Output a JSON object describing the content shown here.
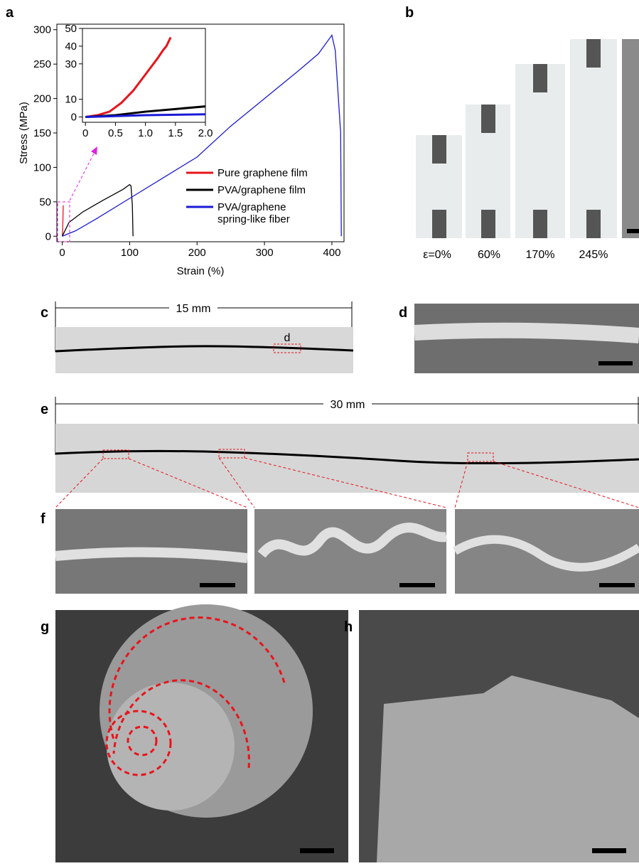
{
  "chart_data": [
    {
      "type": "line",
      "xlabel": "Strain (%)",
      "ylabel": "Stress (MPa)",
      "xlim": [
        -8,
        418
      ],
      "ylim": [
        -8,
        308
      ],
      "xticks": [
        0,
        100,
        200,
        300,
        400
      ],
      "yticks": [
        0,
        50,
        100,
        150,
        200,
        250,
        300
      ],
      "legend": "lower right",
      "series": [
        {
          "name": "Pure graphene film",
          "color": "#e8141c",
          "x": [
            0,
            0.6,
            1.0,
            1.42
          ],
          "values": [
            0,
            8,
            24,
            45
          ]
        },
        {
          "name": "PVA/graphene film",
          "color": "#000000",
          "x": [
            0,
            10,
            30,
            60,
            90,
            100,
            102,
            104,
            105
          ],
          "values": [
            0,
            20,
            35,
            52,
            68,
            75,
            73,
            45,
            0
          ]
        },
        {
          "name": "PVA/graphene spring-like fiber",
          "color": "#1a1ad6",
          "x": [
            0,
            20,
            50,
            100,
            150,
            200,
            250,
            300,
            350,
            380,
            400,
            405,
            413,
            414
          ],
          "values": [
            0,
            8,
            25,
            55,
            85,
            115,
            160,
            200,
            240,
            265,
            292,
            270,
            150,
            0
          ]
        }
      ]
    },
    {
      "type": "line",
      "xlim": [
        -0.05,
        2.0
      ],
      "ylim": [
        -3,
        50
      ],
      "xticks": [
        0,
        0.5,
        {
          "value": 1,
          "label": "1.0"
        },
        1.5,
        {
          "value": 2,
          "label": "2.0"
        }
      ],
      "yticks": [
        0,
        10,
        30,
        40,
        50
      ],
      "series": [
        {
          "color": "#e8141c",
          "x": [
            0,
            0.2,
            0.4,
            0.6,
            0.8,
            1.0,
            1.2,
            1.3,
            1.35,
            1.42
          ],
          "values": [
            0,
            1,
            3,
            8,
            15,
            24,
            33,
            38,
            40,
            45
          ]
        },
        {
          "color": "#000000",
          "x": [
            0,
            0.5,
            1.0,
            1.5,
            2.0
          ],
          "values": [
            0,
            1,
            3,
            4.5,
            6
          ]
        },
        {
          "color": "#1a1ad6",
          "x": [
            0,
            1.0,
            2.0
          ],
          "values": [
            0,
            1,
            1.5
          ]
        }
      ]
    }
  ],
  "figure": {
    "panel_labels": [
      "a",
      "b",
      "c",
      "d",
      "e",
      "f",
      "g",
      "h"
    ],
    "strain_labels": [
      "ε=0%",
      "60%",
      "170%",
      "245%"
    ],
    "scale_c": "15 mm",
    "scale_e": "30 mm",
    "box_label": "d"
  }
}
